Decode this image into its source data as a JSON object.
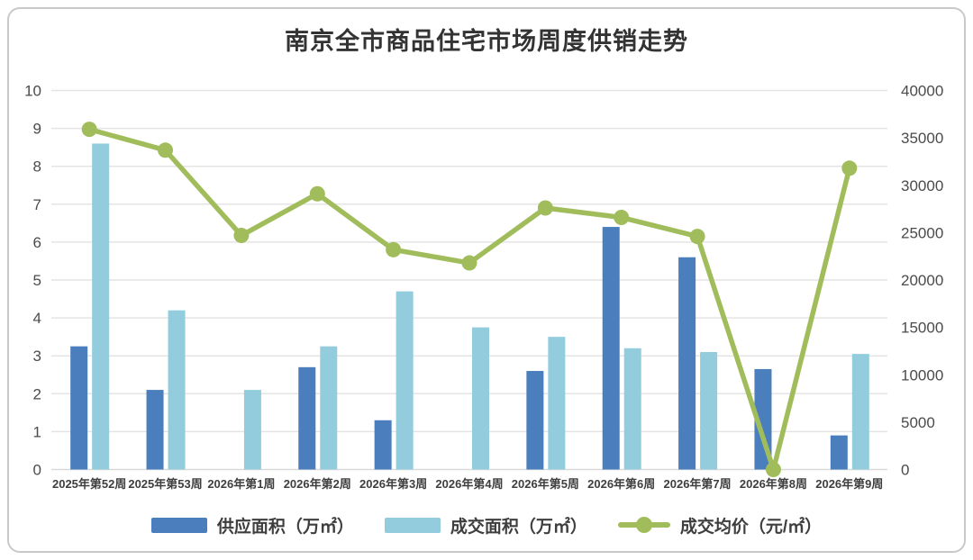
{
  "chart": {
    "title": "南京全市商品住宅市场周度供销走势"
  },
  "chart_data": {
    "type": "bar",
    "subtype": "combo-bar-line-dual-axis",
    "title": "南京全市商品住宅市场周度供销走势",
    "categories": [
      "2025年第52周",
      "2025年第53周",
      "2026年第1周",
      "2026年第2周",
      "2026年第3周",
      "2026年第4周",
      "2026年第5周",
      "2026年第6周",
      "2026年第7周",
      "2026年第8周",
      "2026年第9周"
    ],
    "series": [
      {
        "name": "供应面积（万㎡）",
        "type": "bar",
        "axis": "left",
        "color": "#4A7EBD",
        "values": [
          3.25,
          2.1,
          0,
          2.7,
          1.3,
          0,
          2.6,
          6.4,
          5.6,
          2.65,
          0.9
        ]
      },
      {
        "name": "成交面积（万㎡）",
        "type": "bar",
        "axis": "left",
        "color": "#93CDDD",
        "values": [
          8.6,
          4.2,
          2.1,
          3.25,
          4.7,
          3.75,
          3.5,
          3.2,
          3.1,
          0,
          3.05
        ]
      },
      {
        "name": "成交均价（元/㎡）",
        "type": "line",
        "axis": "right",
        "color": "#A1BD5B",
        "values": [
          35900,
          33700,
          24700,
          29100,
          23200,
          21800,
          27600,
          26600,
          24600,
          0,
          31800
        ]
      }
    ],
    "left_axis": {
      "min": 0,
      "max": 10,
      "step": 1,
      "ticks": [
        "0",
        "1",
        "2",
        "3",
        "4",
        "5",
        "6",
        "7",
        "8",
        "9",
        "10"
      ]
    },
    "right_axis": {
      "min": 0,
      "max": 40000,
      "step": 5000,
      "ticks": [
        "0",
        "5000",
        "10000",
        "15000",
        "20000",
        "25000",
        "30000",
        "35000",
        "40000"
      ]
    },
    "grid": "horizontal-on",
    "legend_position": "bottom",
    "colors": {
      "grid_line": "#e4e4e4",
      "baseline": "#d9d9d9",
      "axis_text": "#4b4b4b",
      "x_label_text": "#3e3e3e",
      "title_text": "#333333",
      "card_border": "#c9c9c9",
      "background": "#ffffff"
    }
  }
}
